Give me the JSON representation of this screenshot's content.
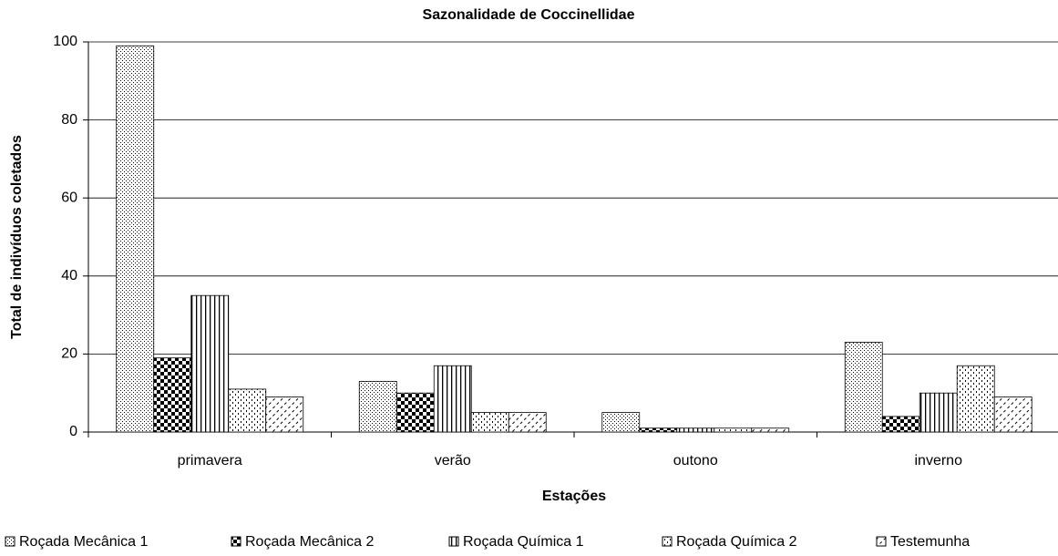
{
  "chart_data": {
    "type": "bar",
    "title": "Sazonalidade de Coccinellidae",
    "x_label": "Estações",
    "y_label": "Total de indivíduos coletados",
    "categories": [
      "primavera",
      "verão",
      "outono",
      "inverno"
    ],
    "series": [
      {
        "name": "Roçada Mecânica 1",
        "color": "#000000",
        "values": [
          99,
          13,
          5,
          23
        ]
      },
      {
        "name": "Roçada Mecânica 2",
        "color": "#000000",
        "values": [
          19,
          10,
          1,
          4
        ]
      },
      {
        "name": "Roçada Química 1",
        "color": "#000000",
        "values": [
          35,
          17,
          1,
          10
        ]
      },
      {
        "name": "Roçada Química 2",
        "color": "#000000",
        "values": [
          11,
          5,
          1,
          17
        ]
      },
      {
        "name": "Testemunha",
        "color": "#000000",
        "values": [
          9,
          5,
          1,
          9
        ]
      }
    ],
    "ylim": [
      0,
      100
    ],
    "yticks": [
      0,
      20,
      40,
      60,
      80,
      100
    ],
    "grid": true,
    "legend": "bottom"
  }
}
